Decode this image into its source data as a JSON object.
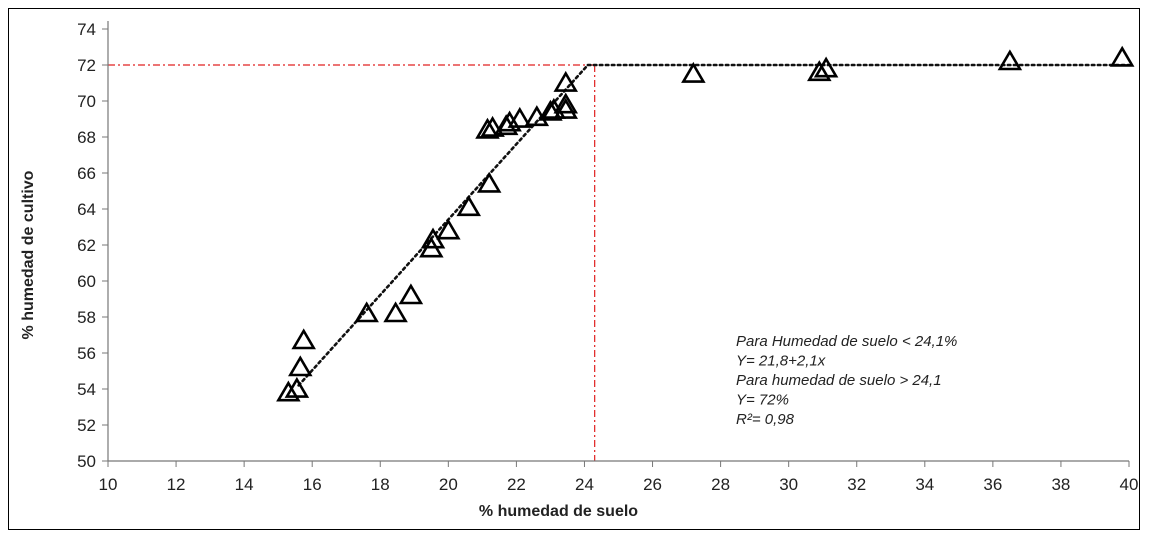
{
  "chart_data": {
    "type": "scatter",
    "title": "",
    "xlabel": "% humedad de suelo",
    "ylabel": "% humedad de cultivo",
    "xlim": [
      10,
      40
    ],
    "ylim": [
      50,
      74
    ],
    "xticks": [
      "10",
      "12",
      "14",
      "16",
      "18",
      "20",
      "22",
      "24",
      "26",
      "28",
      "30",
      "32",
      "34",
      "36",
      "38",
      "40"
    ],
    "yticks": [
      "50",
      "52",
      "54",
      "56",
      "58",
      "60",
      "62",
      "64",
      "66",
      "68",
      "70",
      "72",
      "74"
    ],
    "grid": false,
    "marker": "triangle",
    "points": [
      {
        "x": 15.3,
        "y": 53.8
      },
      {
        "x": 15.55,
        "y": 54.0
      },
      {
        "x": 15.65,
        "y": 55.2
      },
      {
        "x": 15.75,
        "y": 56.7
      },
      {
        "x": 17.6,
        "y": 58.2
      },
      {
        "x": 18.45,
        "y": 58.2
      },
      {
        "x": 18.9,
        "y": 59.2
      },
      {
        "x": 19.5,
        "y": 61.8
      },
      {
        "x": 19.55,
        "y": 62.3
      },
      {
        "x": 20.0,
        "y": 62.8
      },
      {
        "x": 20.6,
        "y": 64.1
      },
      {
        "x": 21.2,
        "y": 65.4
      },
      {
        "x": 21.15,
        "y": 68.4
      },
      {
        "x": 21.3,
        "y": 68.5
      },
      {
        "x": 21.7,
        "y": 68.6
      },
      {
        "x": 21.8,
        "y": 68.8
      },
      {
        "x": 22.1,
        "y": 69.0
      },
      {
        "x": 22.6,
        "y": 69.1
      },
      {
        "x": 23.0,
        "y": 69.4
      },
      {
        "x": 23.1,
        "y": 69.5
      },
      {
        "x": 23.45,
        "y": 69.5
      },
      {
        "x": 23.45,
        "y": 69.8
      },
      {
        "x": 23.45,
        "y": 71.0
      },
      {
        "x": 27.2,
        "y": 71.5
      },
      {
        "x": 30.9,
        "y": 71.6
      },
      {
        "x": 31.1,
        "y": 71.8
      },
      {
        "x": 36.5,
        "y": 72.2
      },
      {
        "x": 39.8,
        "y": 72.4
      }
    ],
    "trendline": {
      "style": "dotted",
      "segments": [
        {
          "x": [
            15.6,
            24.1
          ],
          "y": [
            54.2,
            72.0
          ]
        },
        {
          "x": [
            24.1,
            40.0
          ],
          "y": [
            72.0,
            72.0
          ]
        }
      ]
    },
    "reference_lines": {
      "color": "#e02020",
      "style": "dash-dot",
      "horizontal_y": 72,
      "vertical_x": 24.3
    },
    "annotations": [
      "Para Humedad de suelo < 24,1%",
      "Y= 21,8+2,1x",
      "Para humedad de suelo > 24,1",
      "Y= 72%",
      "R²= 0,98"
    ]
  }
}
